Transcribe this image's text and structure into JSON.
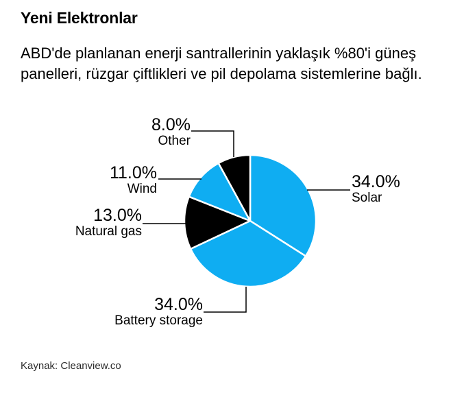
{
  "header": {
    "title": "Yeni Elektronlar",
    "subtitle": "ABD'de planlanan enerji santrallerinin yaklaşık %80'i güneş panelleri, rüzgar çiftlikleri ve pil depolama sistemlerine bağlı."
  },
  "chart_data": {
    "type": "pie",
    "title": "Yeni Elektronlar",
    "unit": "%",
    "start_angle_deg": 0,
    "direction": "clockwise",
    "legend_position": "callout-labels",
    "grid": false,
    "colors": {
      "accent_blue": "#0FADF2",
      "black": "#000000",
      "divider": "#ffffff"
    },
    "slices": [
      {
        "label": "Solar",
        "value": 34.0,
        "display": "34.0%",
        "color": "#0FADF2"
      },
      {
        "label": "Battery storage",
        "value": 34.0,
        "display": "34.0%",
        "color": "#0FADF2"
      },
      {
        "label": "Natural gas",
        "value": 13.0,
        "display": "13.0%",
        "color": "#000000"
      },
      {
        "label": "Wind",
        "value": 11.0,
        "display": "11.0%",
        "color": "#0FADF2"
      },
      {
        "label": "Other",
        "value": 8.0,
        "display": "8.0%",
        "color": "#000000"
      }
    ]
  },
  "source": {
    "label": "Kaynak: Cleanview.co"
  }
}
